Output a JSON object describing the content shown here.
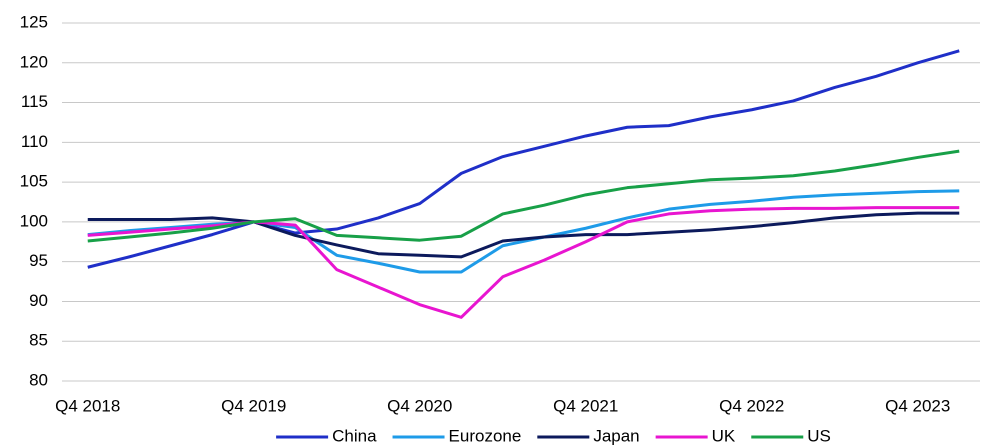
{
  "chart_data": {
    "type": "line",
    "categories": [
      "Q4 2018",
      null,
      null,
      null,
      "Q4 2019",
      null,
      null,
      null,
      "Q4 2020",
      null,
      null,
      null,
      "Q4 2021",
      null,
      null,
      null,
      "Q4 2022",
      null,
      null,
      null,
      "Q4 2023",
      null
    ],
    "series": [
      {
        "name": "China",
        "color": "#1f2fc8",
        "values": [
          94.3,
          95.6,
          97.0,
          98.4,
          100.0,
          98.6,
          99.1,
          100.5,
          102.3,
          106.1,
          108.2,
          109.5,
          110.8,
          111.9,
          112.1,
          113.2,
          114.1,
          115.2,
          116.9,
          118.3,
          120.0,
          121.5
        ]
      },
      {
        "name": "Eurozone",
        "color": "#1e9be8",
        "values": [
          98.4,
          98.9,
          99.3,
          99.7,
          100.0,
          99.3,
          95.8,
          94.8,
          93.7,
          93.7,
          97.0,
          98.1,
          99.2,
          100.5,
          101.6,
          102.2,
          102.6,
          103.1,
          103.4,
          103.6,
          103.8,
          103.9
        ]
      },
      {
        "name": "Japan",
        "color": "#0c1a5c",
        "values": [
          100.3,
          100.3,
          100.3,
          100.5,
          100.0,
          98.3,
          97.1,
          96.0,
          95.8,
          95.6,
          97.6,
          98.1,
          98.4,
          98.4,
          98.7,
          99.0,
          99.4,
          99.9,
          100.5,
          100.9,
          101.1,
          101.1
        ]
      },
      {
        "name": "UK",
        "color": "#e815d0",
        "values": [
          98.3,
          98.7,
          99.1,
          99.5,
          100.0,
          99.6,
          94.0,
          91.8,
          89.6,
          88.0,
          93.1,
          95.2,
          97.5,
          100.0,
          101.0,
          101.4,
          101.6,
          101.7,
          101.7,
          101.8,
          101.8,
          101.8
        ]
      },
      {
        "name": "US",
        "color": "#18a048",
        "values": [
          97.6,
          98.1,
          98.6,
          99.2,
          100.0,
          100.4,
          98.3,
          98.0,
          97.7,
          98.2,
          101.0,
          102.1,
          103.4,
          104.3,
          104.8,
          105.3,
          105.5,
          105.8,
          106.4,
          107.2,
          108.1,
          108.9
        ]
      }
    ],
    "ylim": [
      80,
      125
    ],
    "yticks": [
      80,
      85,
      90,
      95,
      100,
      105,
      110,
      115,
      120,
      125
    ],
    "grid": true,
    "legend": "bottom"
  }
}
